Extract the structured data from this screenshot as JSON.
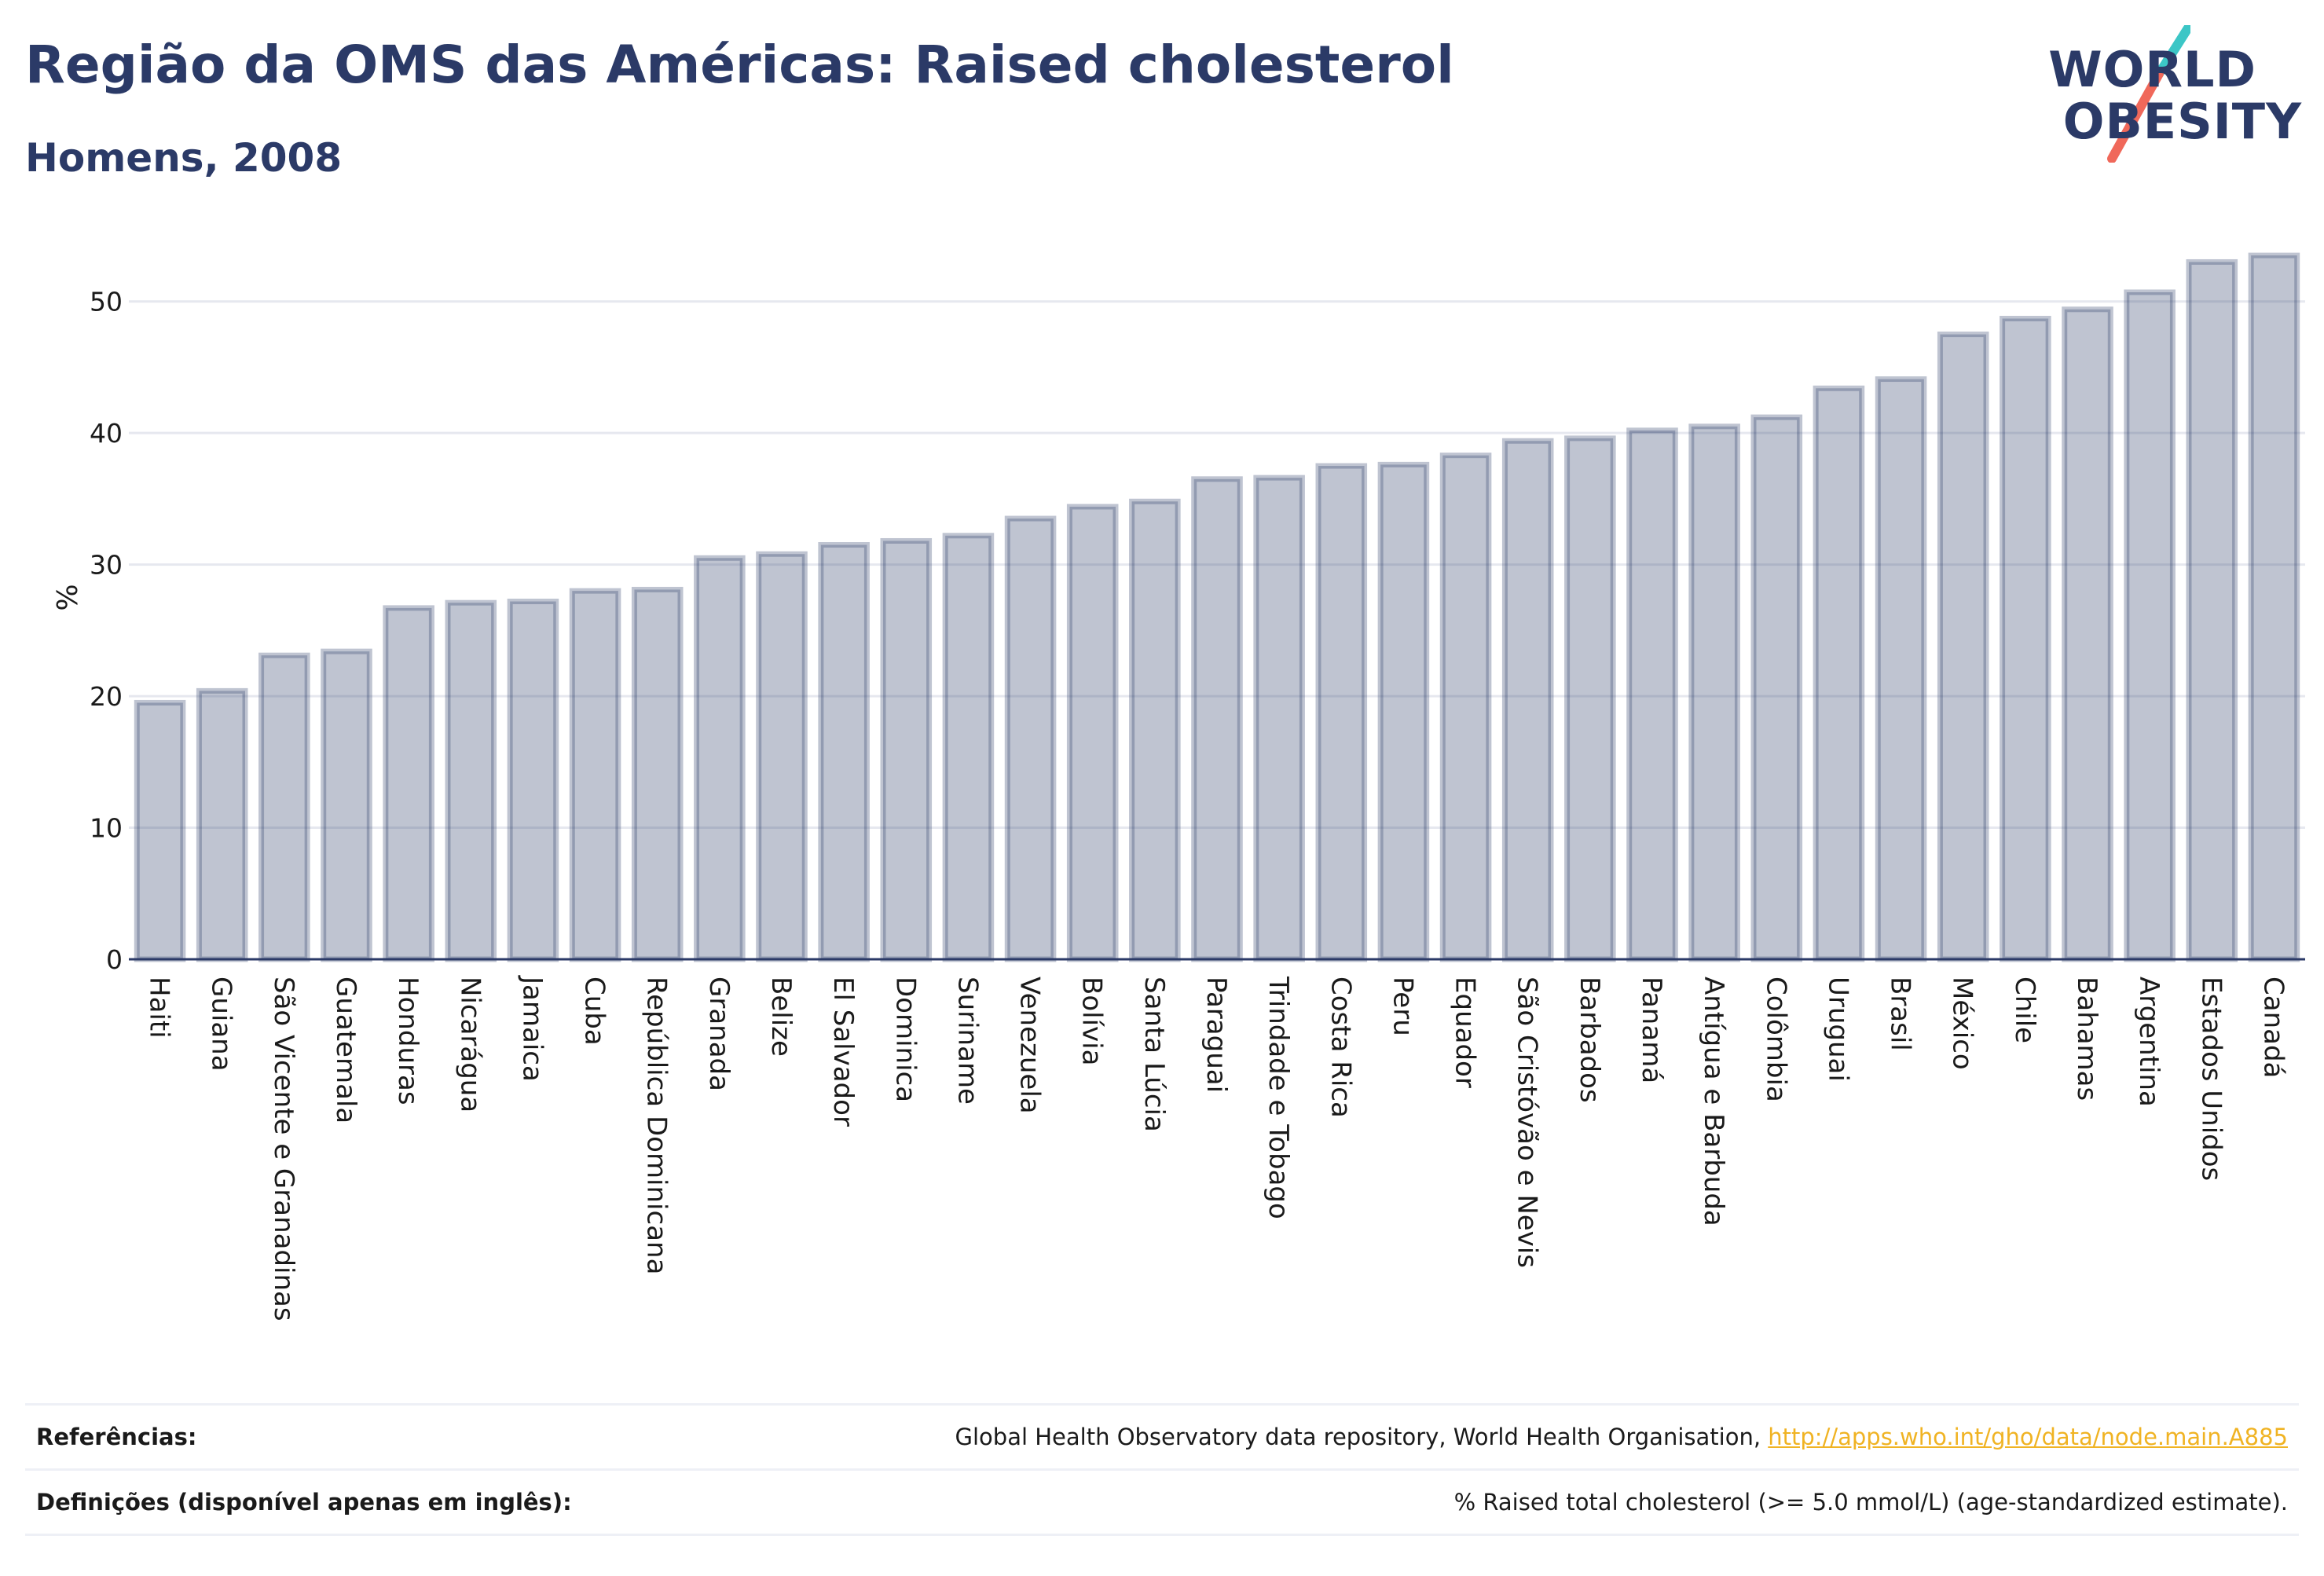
{
  "header": {
    "title": "Região da OMS das Américas: Raised cholesterol",
    "subtitle": "Homens, 2008"
  },
  "logo": {
    "line1": "WORLD",
    "line2": "OBESITY",
    "slash_colors": [
      "#3cc6c6",
      "#f0685a"
    ]
  },
  "footer": {
    "references_label": "Referências:",
    "references_text": "Global Health Observatory data repository, World Health Organisation, ",
    "references_link": "http://apps.who.int/gho/data/node.main.A885",
    "definitions_label": "Definições (disponível apenas em inglês):",
    "definitions_text": "% Raised total cholesterol (>= 5.0 mmol/L) (age-standardized estimate)."
  },
  "chart_data": {
    "type": "bar",
    "title": "Região da OMS das Américas: Raised cholesterol",
    "subtitle": "Homens, 2008",
    "xlabel": "",
    "ylabel": "%",
    "ylim": [
      0,
      55
    ],
    "yticks": [
      0,
      10,
      20,
      30,
      40,
      50
    ],
    "grid": true,
    "bar_color": "#2b3a67",
    "categories": [
      "Haiti",
      "Guiana",
      "São Vicente e Granadinas",
      "Guatemala",
      "Honduras",
      "Nicarágua",
      "Jamaica",
      "Cuba",
      "República Dominicana",
      "Granada",
      "Belize",
      "El Salvador",
      "Dominica",
      "Suriname",
      "Venezuela",
      "Bolívia",
      "Santa Lúcia",
      "Paraguai",
      "Trindade e Tobago",
      "Costa Rica",
      "Peru",
      "Equador",
      "São Cristóvão e Nevis",
      "Barbados",
      "Panamá",
      "Antígua e Barbuda",
      "Colômbia",
      "Uruguai",
      "Brasil",
      "México",
      "Chile",
      "Bahamas",
      "Argentina",
      "Estados Unidos",
      "Canadá"
    ],
    "values": [
      19.5,
      20.4,
      23.1,
      23.4,
      26.7,
      27.1,
      27.2,
      28.0,
      28.1,
      30.5,
      30.8,
      31.5,
      31.8,
      32.2,
      33.5,
      34.4,
      34.8,
      36.5,
      36.6,
      37.5,
      37.6,
      38.3,
      39.4,
      39.6,
      40.2,
      40.5,
      41.2,
      43.4,
      44.1,
      47.5,
      48.7,
      49.4,
      50.7,
      53.0,
      53.5
    ]
  }
}
